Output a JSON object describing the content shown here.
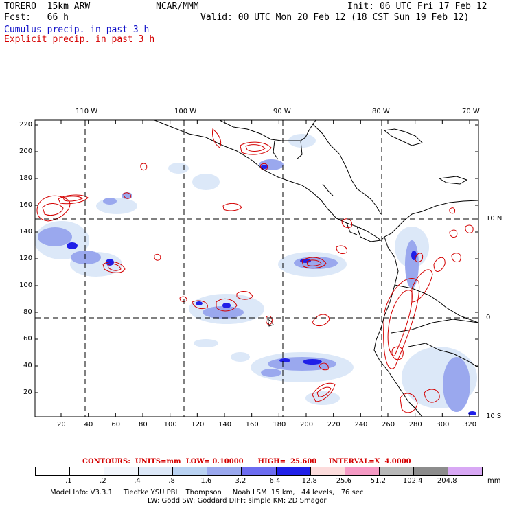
{
  "header": {
    "model": "TORERO  15km ARW",
    "org": "NCAR/MMM",
    "init": "Init: 06 UTC Fri 17 Feb 12",
    "fcst": "Fcst:   66 h",
    "valid": "Valid: 00 UTC Mon 20 Feb 12 (18 CST Sun 19 Feb 12)",
    "field1": "Cumulus precip. in past 3 h",
    "field2": "Explicit precip. in past 3 h"
  },
  "colors": {
    "cumulus": "#1010c8",
    "explicit": "#d40000",
    "land": "#000000",
    "grid": "#000000"
  },
  "map": {
    "lon_labels": [
      "110 W",
      "100 W",
      "90 W",
      "80 W",
      "70 W"
    ],
    "lat_labels": [
      "10 N",
      "0",
      "10 S"
    ],
    "x_ticks": [
      "20",
      "40",
      "60",
      "80",
      "100",
      "120",
      "140",
      "160",
      "180",
      "200",
      "220",
      "240",
      "260",
      "280",
      "300",
      "320"
    ],
    "y_ticks": [
      "20",
      "40",
      "60",
      "80",
      "100",
      "120",
      "140",
      "160",
      "180",
      "200",
      "220"
    ]
  },
  "contours_caption": "CONTOURS:  UNITS=mm  LOW= 0.10000      HIGH=  25.600     INTERVAL=X  4.0000",
  "colorbar": {
    "labels": [
      ".1",
      ".2",
      ".4",
      ".8",
      "1.6",
      "3.2",
      "6.4",
      "12.8",
      "25.6",
      "51.2",
      "102.4",
      "204.8"
    ],
    "colors": [
      "#ffffff",
      "#ffffff",
      "#f2f6fc",
      "#dce8f8",
      "#b9d2f2",
      "#9aa8ee",
      "#6c6cf0",
      "#2020e8",
      "#fcdcdc",
      "#f59ac4",
      "#b8b8b8",
      "#8c8c8c",
      "#d8a8f4"
    ],
    "unit": "mm"
  },
  "footer": {
    "line1": "Model Info: V3.3.1     Tiedtke YSU PBL   Thompson     Noah LSM  15 km,   44 levels,   76 sec",
    "line2": "LW: Godd SW: Goddard DIFF: simple KM: 2D Smagor"
  }
}
